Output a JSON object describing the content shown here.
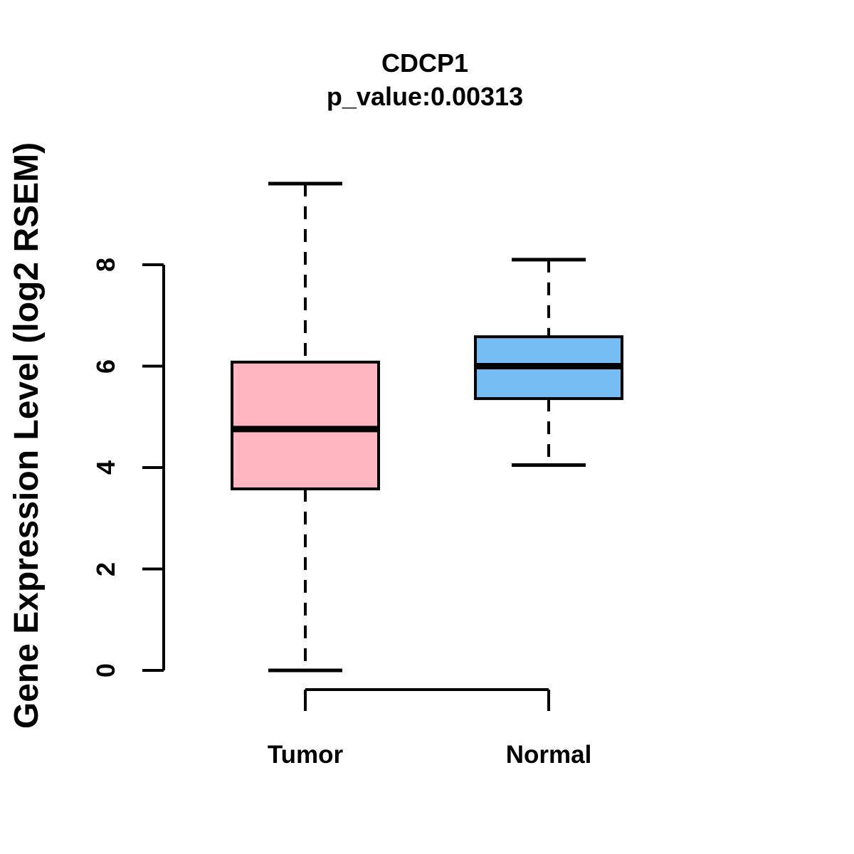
{
  "chart_data": {
    "type": "boxplot",
    "title": "CDCP1",
    "subtitle": "p_value:0.00313",
    "p_value": 0.00313,
    "ylabel": "Gene Expression Level (log2 RSEM)",
    "xlabel": "",
    "categories": [
      "Tumor",
      "Normal"
    ],
    "yticks": [
      "0",
      "2",
      "4",
      "6",
      "8"
    ],
    "ylim": [
      0,
      9.7
    ],
    "grid": false,
    "legend_position": "none",
    "background_color": "#FFFFFF",
    "axis_color": "#000000",
    "whisker_style": "dashed",
    "series": [
      {
        "name": "Tumor",
        "color": "#FFB6C1",
        "lower_whisker": 0.0,
        "q1": 3.58,
        "median": 4.76,
        "q3": 6.08,
        "upper_whisker": 9.6
      },
      {
        "name": "Normal",
        "color": "#75BDF2",
        "lower_whisker": 4.05,
        "q1": 5.36,
        "median": 6.0,
        "q3": 6.58,
        "upper_whisker": 8.1
      }
    ]
  }
}
